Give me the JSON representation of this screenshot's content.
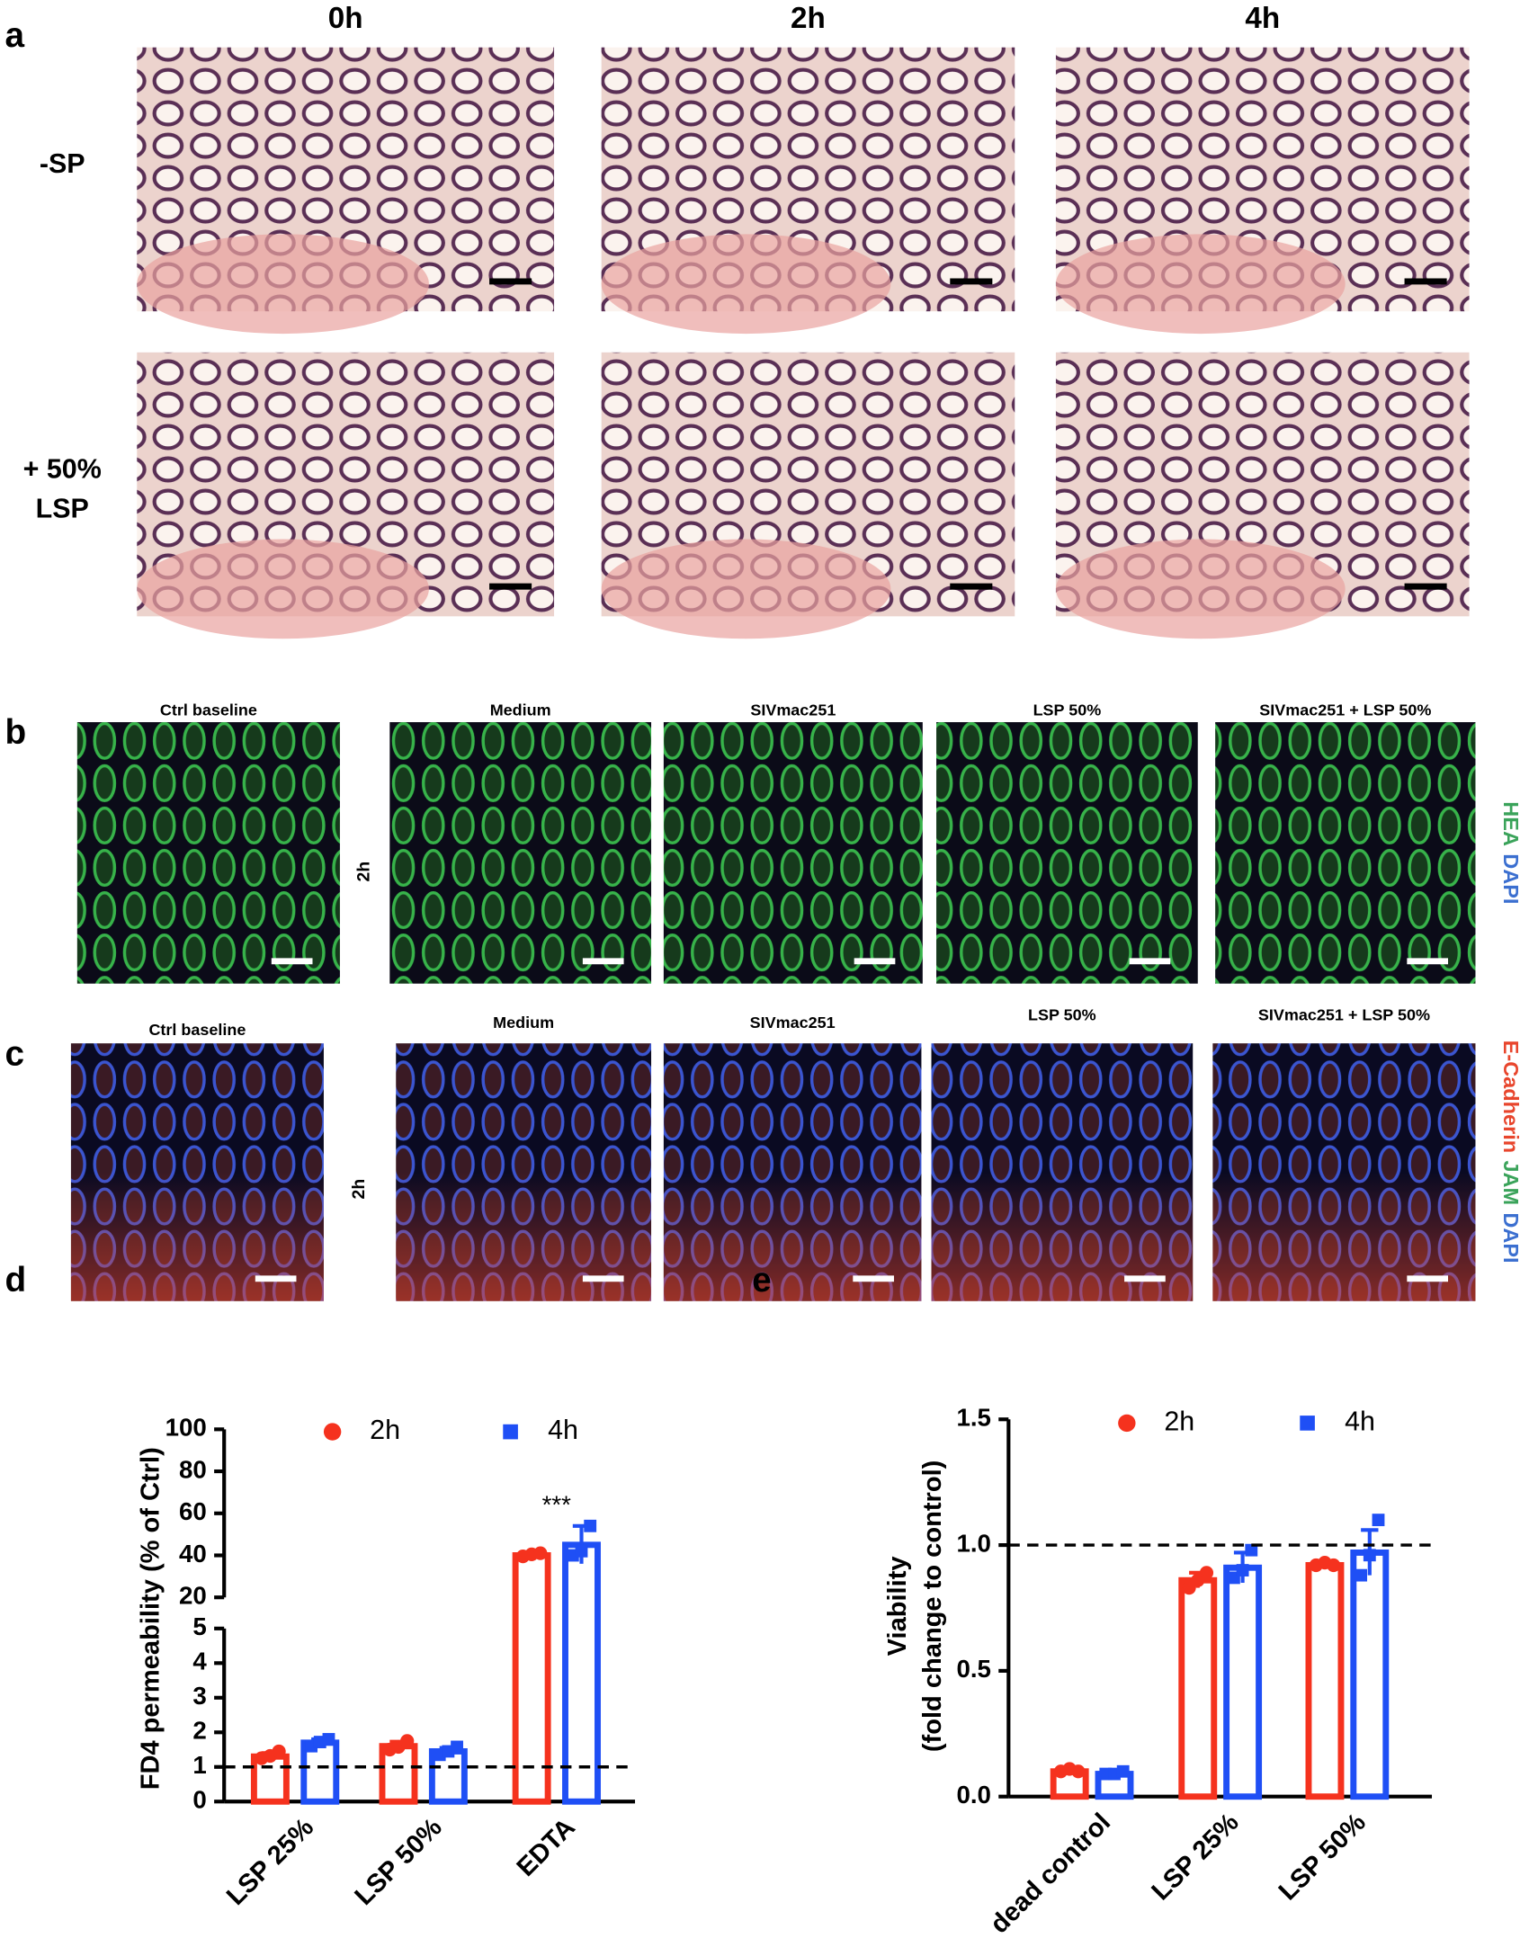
{
  "panel_a": {
    "label": "a",
    "columns": [
      "0h",
      "2h",
      "4h"
    ],
    "rows": [
      [
        "-SP"
      ],
      [
        "+ 50%",
        "LSP"
      ]
    ]
  },
  "panel_b": {
    "label": "b",
    "titles": [
      "Ctrl baseline",
      "Medium",
      "SIVmac251",
      "LSP 50%",
      "SIVmac251 + LSP 50%"
    ],
    "time": "2h",
    "stains": [
      {
        "name": "HEA",
        "color": "#3aa35a"
      },
      {
        "name": "DAPI",
        "color": "#3b6fd0"
      }
    ]
  },
  "panel_c": {
    "label": "c",
    "titles": [
      "Ctrl baseline",
      "Medium",
      "SIVmac251",
      "LSP 50%",
      "SIVmac251 + LSP 50%"
    ],
    "time": "2h",
    "stains": [
      {
        "name": "E-Cadherin",
        "color": "#e8452c"
      },
      {
        "name": "JAM",
        "color": "#3aa35a"
      },
      {
        "name": "DAPI",
        "color": "#3b6fd0"
      }
    ]
  },
  "chart_data": [
    {
      "type": "bar",
      "panel_label": "d",
      "ylabel": [
        "FD4 permeability (% of Ctrl)"
      ],
      "categories": [
        "LSP 25%",
        "LSP 50%",
        "EDTA"
      ],
      "ylim": [
        0,
        100
      ],
      "ybreak": [
        5,
        20
      ],
      "yticks": [
        0,
        1,
        2,
        3,
        4,
        5,
        20,
        40,
        60,
        80,
        100
      ],
      "reference_line": 1,
      "annotation": "***",
      "series": [
        {
          "name": "2h",
          "color": "#f5321e",
          "marker": "circle",
          "values": [
            1.3,
            1.6,
            40
          ],
          "errors": [
            0.1,
            0.13,
            0.8
          ],
          "points": [
            [
              1.25,
              1.32,
              1.45
            ],
            [
              1.5,
              1.58,
              1.75
            ],
            [
              39.5,
              40.5,
              41
            ]
          ]
        },
        {
          "name": "4h",
          "color": "#1f4ff5",
          "marker": "square",
          "values": [
            1.7,
            1.45,
            45
          ],
          "errors": [
            0.1,
            0.1,
            9
          ],
          "points": [
            [
              1.6,
              1.72,
              1.8
            ],
            [
              1.35,
              1.45,
              1.58
            ],
            [
              40,
              42,
              54
            ]
          ]
        }
      ]
    },
    {
      "type": "bar",
      "panel_label": "e",
      "ylabel": [
        "Viability",
        "(fold change to control)"
      ],
      "categories": [
        "dead control",
        "LSP 25%",
        "LSP 50%"
      ],
      "ylim": [
        0,
        1.5
      ],
      "yticks": [
        {
          "value": 0,
          "label": "0.0"
        },
        0.5,
        {
          "value": 1,
          "label": "1.0"
        },
        1.5
      ],
      "reference_line": 1,
      "series": [
        {
          "name": "2h",
          "color": "#f5321e",
          "marker": "circle",
          "values": [
            0.1,
            0.86,
            0.92
          ],
          "errors": [
            0.01,
            0.03,
            0.01
          ],
          "points": [
            [
              0.1,
              0.11,
              0.1
            ],
            [
              0.83,
              0.86,
              0.89
            ],
            [
              0.92,
              0.93,
              0.92
            ]
          ]
        },
        {
          "name": "4h",
          "color": "#1f4ff5",
          "marker": "square",
          "values": [
            0.09,
            0.91,
            0.97
          ],
          "errors": [
            0.005,
            0.06,
            0.09
          ],
          "points": [
            [
              0.09,
              0.09,
              0.1
            ],
            [
              0.87,
              0.9,
              0.98
            ],
            [
              0.88,
              0.96,
              1.1
            ]
          ]
        }
      ]
    }
  ]
}
